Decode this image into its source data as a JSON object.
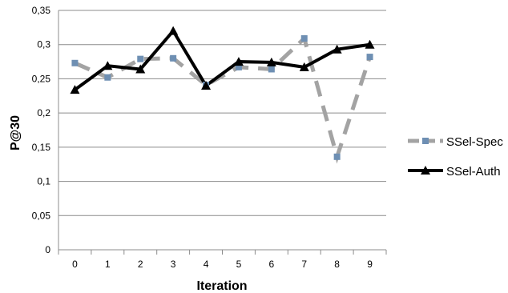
{
  "chart_data": {
    "type": "line",
    "title": "",
    "xlabel": "Iteration",
    "ylabel": "P@30",
    "categories": [
      "0",
      "1",
      "2",
      "3",
      "4",
      "5",
      "6",
      "7",
      "8",
      "9"
    ],
    "ylim": [
      0,
      0.35
    ],
    "yticks": [
      "0",
      "0,05",
      "0,1",
      "0,15",
      "0,2",
      "0,25",
      "0,3",
      "0,35"
    ],
    "ytick_values": [
      0,
      0.05,
      0.1,
      0.15,
      0.2,
      0.25,
      0.3,
      0.35
    ],
    "grid": "horizontal",
    "legend_position": "right",
    "series": [
      {
        "name": "SSel-Spec",
        "values": [
          0.273,
          0.252,
          0.279,
          0.28,
          0.241,
          0.267,
          0.264,
          0.309,
          0.136,
          0.282
        ],
        "color": "#a3a3a3",
        "marker_color": "#6e8fb3",
        "marker": "square",
        "dashed": true
      },
      {
        "name": "SSel-Auth",
        "values": [
          0.234,
          0.269,
          0.264,
          0.32,
          0.24,
          0.275,
          0.274,
          0.267,
          0.293,
          0.3
        ],
        "color": "#000000",
        "marker_color": "#000000",
        "marker": "triangle",
        "dashed": false
      }
    ]
  }
}
